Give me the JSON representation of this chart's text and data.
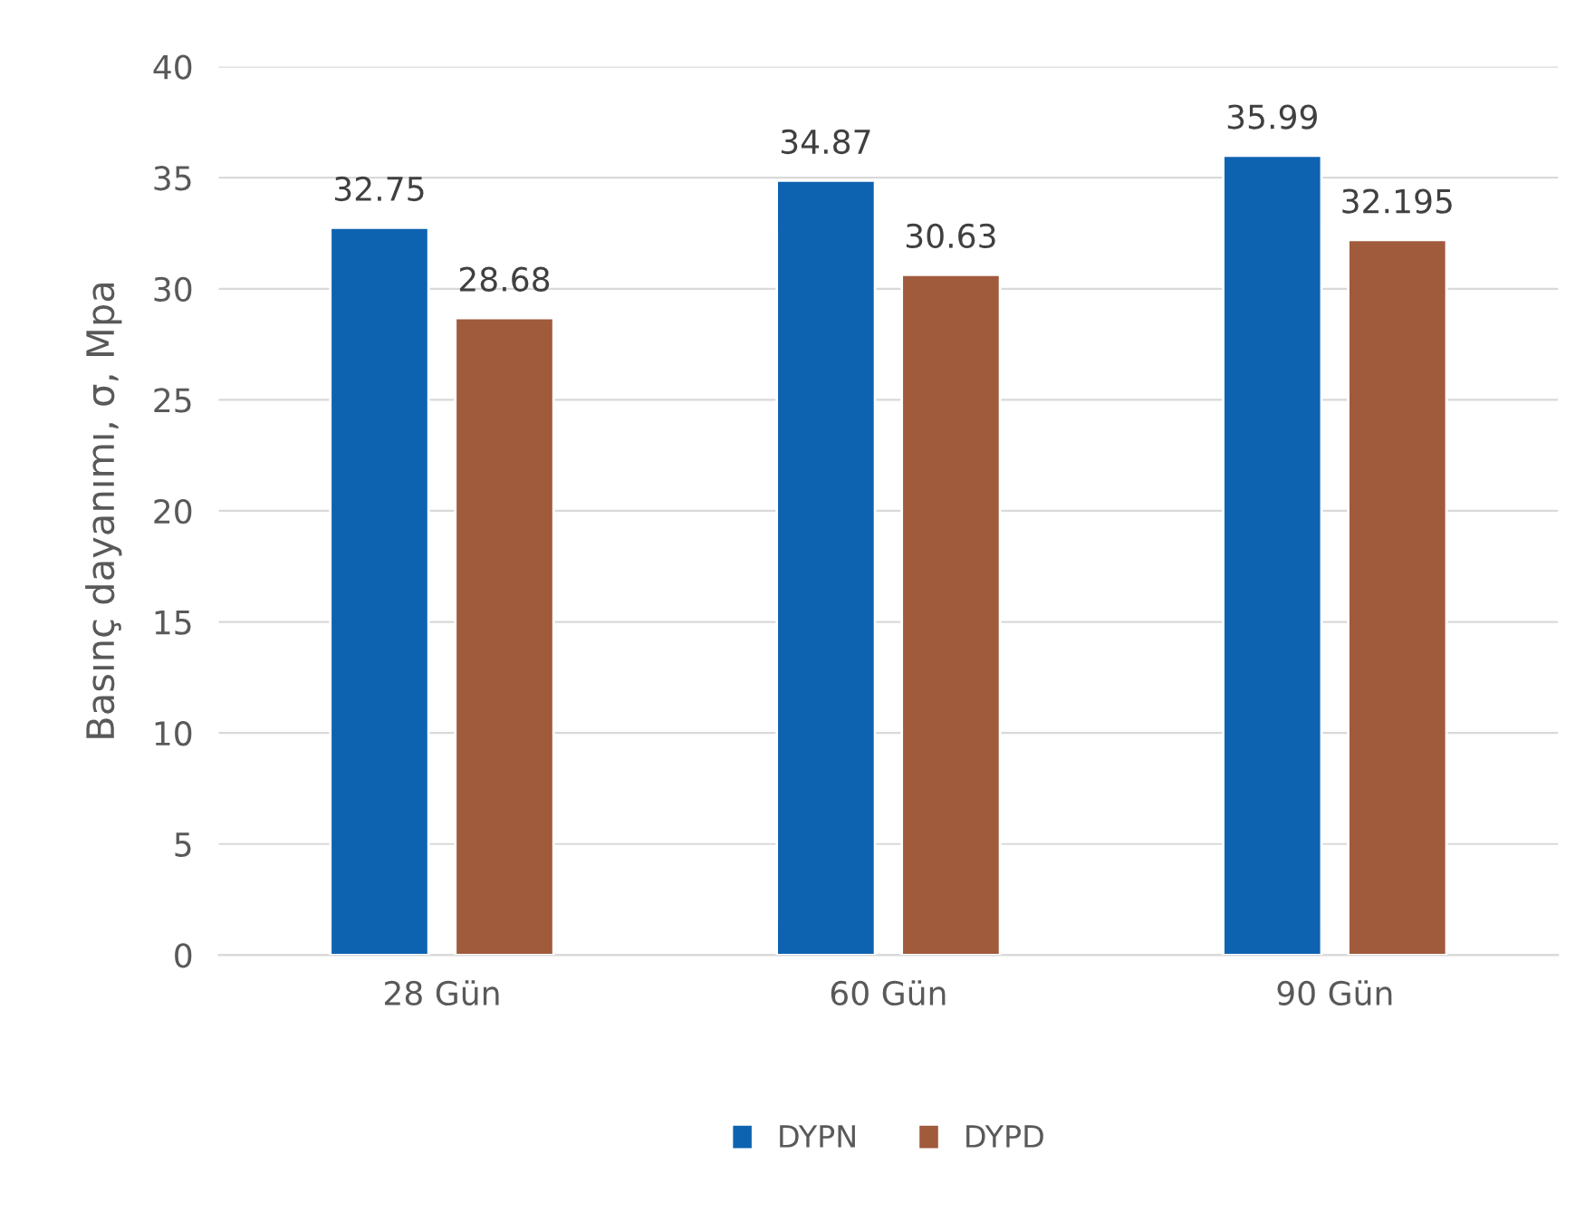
{
  "chart_data": {
    "type": "bar",
    "ylabel": "Basınç dayanımı, σ, Mpa",
    "categories": [
      "28 Gün",
      "60 Gün",
      "90 Gün"
    ],
    "series": [
      {
        "name": "DYPN",
        "color": "#0e63b0",
        "values": [
          32.75,
          34.87,
          35.99
        ]
      },
      {
        "name": "DYPD",
        "color": "#a05a3c",
        "values": [
          28.68,
          30.63,
          32.195
        ]
      }
    ],
    "ylim": [
      0,
      40
    ],
    "yticks": [
      0,
      5,
      10,
      15,
      20,
      25,
      30,
      35,
      40
    ],
    "grid": "y",
    "legend": "bottom",
    "data_labels": true
  }
}
